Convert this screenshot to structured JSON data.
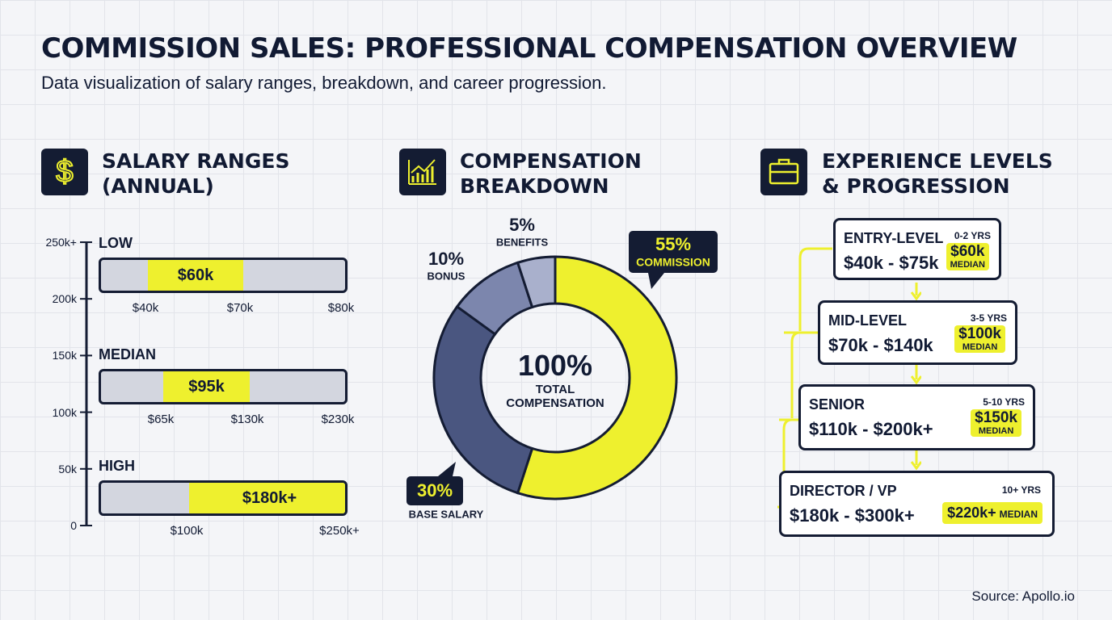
{
  "header": {
    "title": "COMMISSION SALES: PROFESSIONAL COMPENSATION OVERVIEW",
    "subtitle": "Data visualization of salary ranges, breakdown, and career progression."
  },
  "salary_ranges": {
    "title": "SALARY RANGES (ANNUAL)",
    "axis_labels": [
      "250k+",
      "200k",
      "150k",
      "100k",
      "50k",
      "0"
    ],
    "rows": [
      {
        "name": "LOW",
        "value": "$60k",
        "marks": [
          "$40k",
          "$70k",
          "$80k"
        ]
      },
      {
        "name": "MEDIAN",
        "value": "$95k",
        "marks": [
          "$65k",
          "$130k",
          "$230k"
        ]
      },
      {
        "name": "HIGH",
        "value": "$180k+",
        "marks": [
          "$100k",
          "$250k+"
        ]
      }
    ]
  },
  "chart_data": {
    "type": "donut",
    "title": "COMPENSATION BREAKDOWN",
    "center_label": "100%",
    "center_sublabel": "TOTAL COMPENSATION",
    "categories": [
      "COMMISSION",
      "BASE SALARY",
      "BONUS",
      "BENEFITS"
    ],
    "values": [
      55,
      30,
      10,
      5
    ],
    "value_labels": [
      "55%",
      "30%",
      "10%",
      "5%"
    ],
    "colors": [
      "#eef02e",
      "#4a5680",
      "#7c86ad",
      "#a9b0cc"
    ]
  },
  "experience": {
    "title": "EXPERIENCE LEVELS & PROGRESSION",
    "levels": [
      {
        "name": "ENTRY-LEVEL",
        "years": "0-2 YRS",
        "range": "$40k - $75k",
        "median": "$60k",
        "median_label": "MEDIAN"
      },
      {
        "name": "MID-LEVEL",
        "years": "3-5 YRS",
        "range": "$70k - $140k",
        "median": "$100k",
        "median_label": "MEDIAN"
      },
      {
        "name": "SENIOR",
        "years": "5-10 YRS",
        "range": "$110k - $200k+",
        "median": "$150k",
        "median_label": "MEDIAN"
      },
      {
        "name": "DIRECTOR / VP",
        "years": "10+ YRS",
        "range": "$180k - $300k+",
        "median": "$220k+",
        "median_label": "MEDIAN"
      }
    ]
  },
  "source": "Source: Apollo.io"
}
